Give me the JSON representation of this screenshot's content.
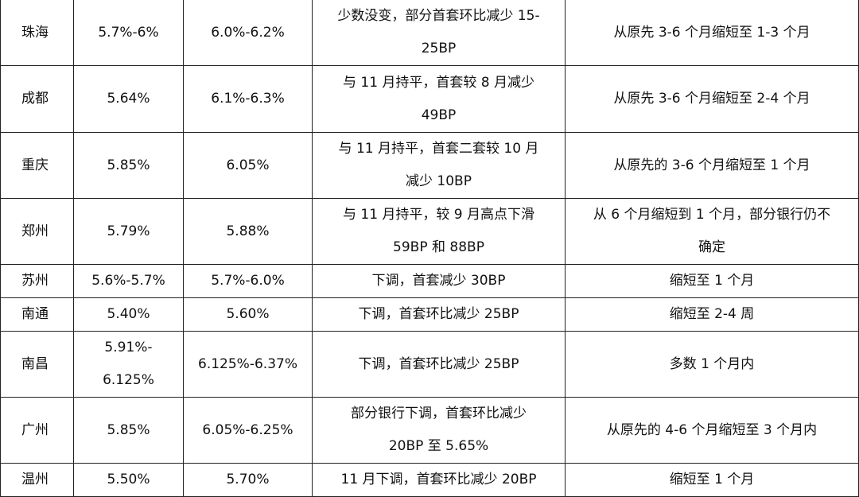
{
  "rows": [
    {
      "city": "珠海",
      "rate1": "5.7%-6%",
      "rate2": "6.0%-6.2%",
      "change": "少数没变，部分首套环比减少 15-\n25BP",
      "cycle": "从原先 3-6 个月缩短至 1-3 个月"
    },
    {
      "city": "成都",
      "rate1": "5.64%",
      "rate2": "6.1%-6.3%",
      "change": "与 11 月持平，首套较 8 月减少\n49BP",
      "cycle": "从原先 3-6 个月缩短至 2-4 个月"
    },
    {
      "city": "重庆",
      "rate1": "5.85%",
      "rate2": "6.05%",
      "change": "与 11 月持平，首套二套较 10 月\n减少 10BP",
      "cycle": "从原先的 3-6 个月缩短至 1 个月"
    },
    {
      "city": "郑州",
      "rate1": "5.79%",
      "rate2": "5.88%",
      "change": "与 11 月持平，较 9 月高点下滑\n59BP 和 88BP",
      "cycle": "从 6 个月缩短到 1 个月，部分银行仍不\n确定"
    },
    {
      "city": "苏州",
      "rate1": "5.6%-5.7%",
      "rate2": "5.7%-6.0%",
      "change": "下调，首套减少 30BP",
      "cycle": "缩短至 1 个月"
    },
    {
      "city": "南通",
      "rate1": "5.40%",
      "rate2": "5.60%",
      "change": "下调，首套环比减少 25BP",
      "cycle": "缩短至 2-4 周"
    },
    {
      "city": "南昌",
      "rate1": "5.91%-\n6.125%",
      "rate2": "6.125%-6.37%",
      "change": "下调，首套环比减少 25BP",
      "cycle": "多数 1 个月内"
    },
    {
      "city": "广州",
      "rate1": "5.85%",
      "rate2": "6.05%-6.25%",
      "change": "部分银行下调，首套环比减少\n20BP 至 5.65%",
      "cycle": "从原先的 4-6 个月缩短至 3 个月内"
    },
    {
      "city": "温州",
      "rate1": "5.50%",
      "rate2": "5.70%",
      "change": "11 月下调，首套环比减少 20BP",
      "cycle": "缩短至 1 个月"
    }
  ]
}
